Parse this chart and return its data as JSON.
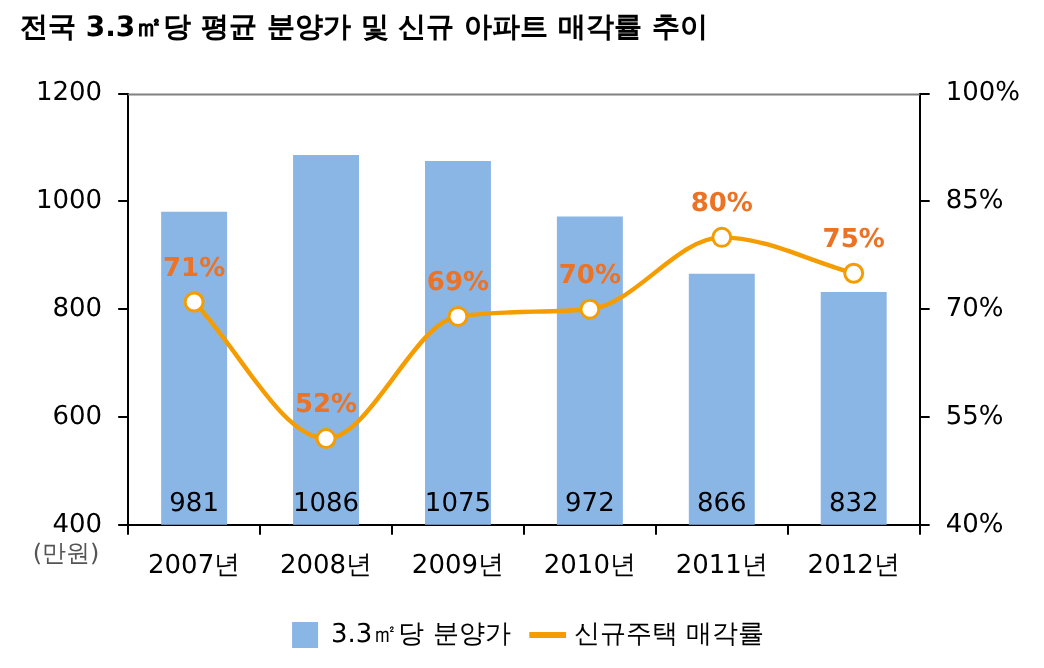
{
  "chart_data": {
    "type": "bar",
    "title": "전국 3.3㎡당 평균 분양가 및 신규 아파트 매각률 추이",
    "ylabel": "(만원)",
    "categories": [
      "2007년",
      "2008년",
      "2009년",
      "2010년",
      "2011년",
      "2012년"
    ],
    "series": [
      {
        "name": "3.3㎡당 분양가",
        "color": "#8ab6e6",
        "values": [
          981,
          1086,
          1075,
          972,
          866,
          832
        ],
        "value_labels": [
          "981",
          "1086",
          "1075",
          "972",
          "866",
          "832"
        ]
      },
      {
        "name": "신규주택 매각률",
        "type": "line",
        "axis": "y2",
        "color": "#f59c00",
        "values": [
          71,
          52,
          69,
          70,
          80,
          75
        ],
        "value_labels": [
          "71%",
          "52%",
          "69%",
          "70%",
          "80%",
          "75%"
        ]
      }
    ],
    "ylim": [
      400,
      1200
    ],
    "yticks": [
      400,
      600,
      800,
      1000,
      1200
    ],
    "y2lim": [
      40,
      100
    ],
    "y2ticks": [
      {
        "value": 40,
        "label": "40%"
      },
      {
        "value": 55,
        "label": "55%"
      },
      {
        "value": 70,
        "label": "70%"
      },
      {
        "value": 85,
        "label": "85%"
      },
      {
        "value": 100,
        "label": "100%"
      }
    ],
    "legend": "bottom",
    "marker": "circle"
  }
}
